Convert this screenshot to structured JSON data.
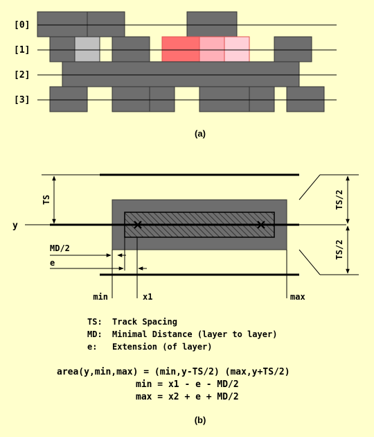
{
  "panel_a": {
    "caption": "(a)",
    "layer_labels": [
      "[0]",
      "[1]",
      "[2]",
      "[3]"
    ]
  },
  "panel_b": {
    "caption": "(b)",
    "labels": {
      "ts_left": "TS",
      "ts_half_top": "TS/2",
      "ts_half_bottom": "TS/2",
      "y": "y",
      "md_half": "MD/2",
      "e": "e",
      "min": "min",
      "x1": "x1",
      "max": "max"
    },
    "legend": [
      {
        "abbr": "TS:",
        "text": "Track Spacing"
      },
      {
        "abbr": "MD:",
        "text": "Minimal Distance (layer to layer)"
      },
      {
        "abbr": "e:",
        "text": "Extension (of layer)"
      }
    ],
    "formula": [
      "area(y,min,max) = (min,y-TS/2) (max,y+TS/2)",
      "min = x1 - e - MD/2",
      "max = x2 + e + MD/2"
    ]
  },
  "colors": {
    "background": "#ffffcc",
    "block_gray": "#6e6e6e",
    "highlight_red": "#ff7070",
    "highlight_pink": "#ffb0b8",
    "highlight_light_pink": "#ffd0d8",
    "highlight_light_gray": "#c0c0c0"
  }
}
